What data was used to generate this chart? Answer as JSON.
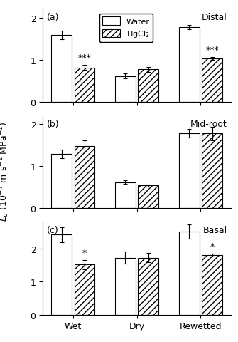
{
  "panels": [
    {
      "label": "(a)",
      "region": "Distal",
      "ylim": [
        0,
        2.2
      ],
      "yticks": [
        0,
        1,
        2
      ],
      "groups": [
        "Wet",
        "Dry",
        "Rewetted"
      ],
      "water_vals": [
        1.6,
        0.62,
        1.78
      ],
      "water_errs": [
        0.1,
        0.06,
        0.05
      ],
      "hgcl2_vals": [
        0.82,
        0.78,
        1.04
      ],
      "hgcl2_errs": [
        0.06,
        0.06,
        0.03
      ],
      "sig_labels": [
        "***",
        "",
        "***"
      ],
      "sig_on_hgcl2": [
        true,
        false,
        true
      ]
    },
    {
      "label": "(b)",
      "region": "Mid-root",
      "ylim": [
        0,
        2.2
      ],
      "yticks": [
        0,
        1,
        2
      ],
      "groups": [
        "Wet",
        "Dry",
        "Rewetted"
      ],
      "water_vals": [
        1.3,
        0.62,
        1.78
      ],
      "water_errs": [
        0.1,
        0.04,
        0.1
      ],
      "hgcl2_vals": [
        1.48,
        0.54,
        1.78
      ],
      "hgcl2_errs": [
        0.14,
        0.03,
        0.16
      ],
      "sig_labels": [
        "",
        "",
        ""
      ],
      "sig_on_hgcl2": [
        false,
        false,
        false
      ]
    },
    {
      "label": "(c)",
      "region": "Basal",
      "ylim": [
        0,
        2.8
      ],
      "yticks": [
        0,
        1,
        2
      ],
      "groups": [
        "Wet",
        "Dry",
        "Rewetted"
      ],
      "water_vals": [
        2.42,
        1.72,
        2.52
      ],
      "water_errs": [
        0.22,
        0.18,
        0.22
      ],
      "hgcl2_vals": [
        1.52,
        1.72,
        1.8
      ],
      "hgcl2_errs": [
        0.14,
        0.14,
        0.04
      ],
      "sig_labels": [
        "*",
        "",
        "*"
      ],
      "sig_on_hgcl2": [
        true,
        false,
        true
      ]
    }
  ],
  "bar_width": 0.32,
  "group_positions": [
    0,
    1,
    2
  ],
  "water_color": "white",
  "hgcl2_color": "white",
  "hatch_pattern": "////",
  "edge_color": "black",
  "ylabel": "$L_p$ (10$^{-7}$ m s$^{-1}$ MPa$^{-1}$)",
  "xlabel_groups": [
    "Wet",
    "Dry",
    "Rewetted"
  ],
  "background_color": "white",
  "fontsize": 9,
  "sig_fontsize": 9
}
